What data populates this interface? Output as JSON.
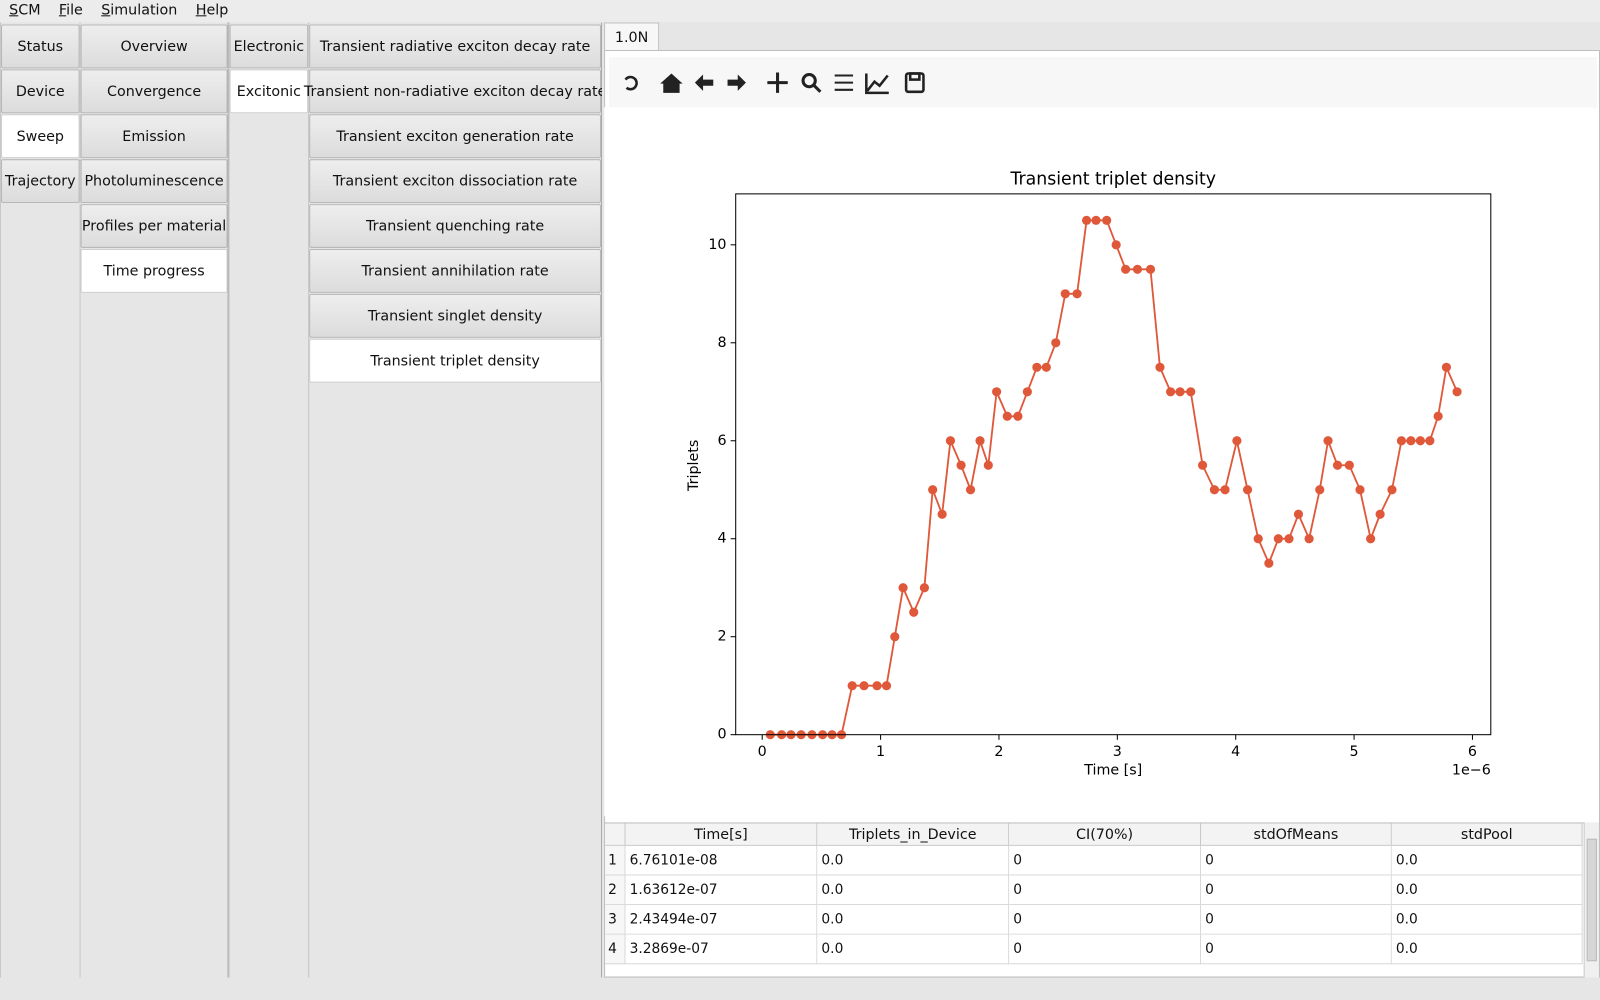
{
  "menu": [
    "SCM",
    "File",
    "Simulation",
    "Help"
  ],
  "nav": [
    {
      "items": [
        "Status",
        "Device",
        "Sweep",
        "Trajectory"
      ],
      "selected": 2
    },
    {
      "items": [
        "Overview",
        "Convergence",
        "Emission",
        "Photoluminescence",
        "Profiles per material",
        "Time progress"
      ],
      "selected": 5
    },
    {
      "items": [
        "Electronic",
        "Excitonic"
      ],
      "selected": 1
    },
    {
      "items": [
        "Transient radiative exciton decay rate",
        "Transient non-radiative exciton decay rate",
        "Transient exciton generation rate",
        "Transient exciton dissociation rate",
        "Transient quenching rate",
        "Transient annihilation rate",
        "Transient singlet density",
        "Transient triplet density"
      ],
      "selected": 7
    }
  ],
  "plot_tab": "1.0N",
  "chart_data": {
    "type": "line",
    "title": "Transient triplet density",
    "x_label": "Time [s]",
    "y_label": "Triplets",
    "x_offset_label": "1e−6",
    "x": [
      0.068,
      0.164,
      0.243,
      0.329,
      0.42,
      0.51,
      0.59,
      0.67,
      0.76,
      0.86,
      0.97,
      1.05,
      1.12,
      1.19,
      1.28,
      1.37,
      1.44,
      1.52,
      1.59,
      1.68,
      1.76,
      1.84,
      1.91,
      1.98,
      2.07,
      2.16,
      2.24,
      2.32,
      2.4,
      2.48,
      2.56,
      2.66,
      2.74,
      2.82,
      2.91,
      2.99,
      3.07,
      3.17,
      3.28,
      3.36,
      3.45,
      3.53,
      3.62,
      3.72,
      3.82,
      3.91,
      4.01,
      4.1,
      4.19,
      4.28,
      4.36,
      4.45,
      4.53,
      4.62,
      4.71,
      4.78,
      4.86,
      4.96,
      5.05,
      5.14,
      5.22,
      5.32,
      5.4,
      5.48,
      5.56,
      5.64,
      5.71,
      5.78,
      5.87
    ],
    "values": [
      0,
      0,
      0,
      0,
      0,
      0,
      0,
      0,
      1,
      1,
      1,
      1,
      2,
      3,
      2.5,
      3,
      5,
      4.5,
      6,
      5.5,
      5,
      6,
      5.5,
      7,
      6.5,
      6.5,
      7,
      7.5,
      7.5,
      8,
      9,
      9,
      10.5,
      10.5,
      10.5,
      10,
      9.5,
      9.5,
      9.5,
      7.5,
      7,
      7,
      7,
      5.5,
      5,
      5,
      6,
      5,
      4,
      3.5,
      4,
      4,
      4.5,
      4,
      5,
      6,
      5.5,
      5.5,
      5,
      4,
      4.5,
      5,
      6,
      6,
      6,
      6,
      6.5,
      7.5,
      7
    ],
    "color": "#e0583a",
    "xlim": [
      -0.224,
      6.155
    ],
    "ylim": [
      0,
      11.04
    ],
    "xticks": [
      0,
      1,
      2,
      3,
      4,
      5,
      6
    ],
    "yticks": [
      0,
      2,
      4,
      6,
      8,
      10
    ]
  },
  "table": {
    "columns": [
      "Time[s]",
      "Triplets_in_Device",
      "CI(70%)",
      "stdOfMeans",
      "stdPool"
    ],
    "rows": [
      {
        "index": "1",
        "cells": [
          "6.76101e-08",
          "0.0",
          "0",
          "0",
          "0.0"
        ]
      },
      {
        "index": "2",
        "cells": [
          "1.63612e-07",
          "0.0",
          "0",
          "0",
          "0.0"
        ]
      },
      {
        "index": "3",
        "cells": [
          "2.43494e-07",
          "0.0",
          "0",
          "0",
          "0.0"
        ]
      },
      {
        "index": "4",
        "cells": [
          "3.2869e-07",
          "0.0",
          "0",
          "0",
          "0.0"
        ]
      }
    ]
  }
}
